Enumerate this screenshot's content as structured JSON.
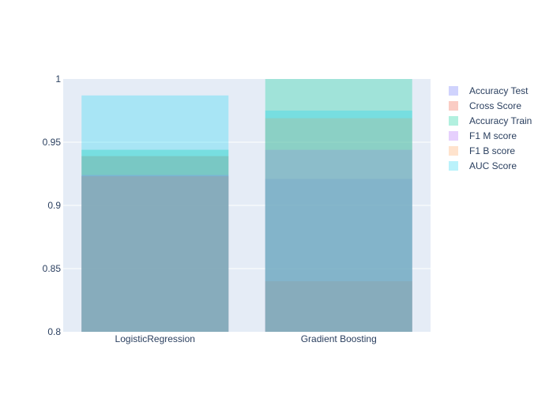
{
  "chart_data": {
    "type": "bar",
    "barmode": "overlay",
    "categories": [
      "LogisticRegression",
      "Gradient Boosting"
    ],
    "ylim": [
      0.8,
      1.0
    ],
    "yticks": [
      {
        "value": 0.8,
        "label": "0.8"
      },
      {
        "value": 0.85,
        "label": "0.85"
      },
      {
        "value": 0.9,
        "label": "0.9"
      },
      {
        "value": 0.95,
        "label": "0.95"
      },
      {
        "value": 1.0,
        "label": "1"
      }
    ],
    "grid": true,
    "legend_position": "right",
    "series": [
      {
        "name": "Accuracy Test",
        "color": "#636efa",
        "values": [
          0.923,
          0.921
        ]
      },
      {
        "name": "Cross Score",
        "color": "#ef553b",
        "values": [
          0.939,
          0.84
        ]
      },
      {
        "name": "Accuracy Train",
        "color": "#00cc96",
        "values": [
          0.944,
          1.0
        ]
      },
      {
        "name": "F1 M score",
        "color": "#ab63fa",
        "values": [
          0.924,
          0.944
        ]
      },
      {
        "name": "F1 B score",
        "color": "#ffa15a",
        "values": [
          0.923,
          0.969
        ]
      },
      {
        "name": "AUC Score",
        "color": "#19d3f3",
        "values": [
          0.987,
          0.975
        ]
      }
    ]
  }
}
